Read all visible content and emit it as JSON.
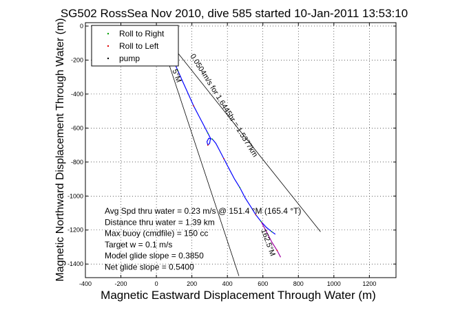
{
  "chart_data": {
    "type": "line",
    "title": "SG502 RossSea Nov 2010, dive 585 started 10-Jan-2011 13:53:10",
    "xlabel": "Magnetic Eastward Displacement Through Water (m)",
    "ylabel": "Magnetic Northward Displacement Through Water (m)",
    "xlim": [
      -400,
      1350
    ],
    "ylim": [
      -1480,
      20
    ],
    "xticks": [
      -400,
      -200,
      0,
      200,
      400,
      600,
      800,
      1000,
      1200
    ],
    "yticks": [
      0,
      -200,
      -400,
      -600,
      -800,
      -1000,
      -1200,
      -1400
    ],
    "grid": true,
    "legend_position": "top-left",
    "legend": [
      {
        "label": "Roll to Right",
        "color": "#00a000",
        "marker": "dot"
      },
      {
        "label": "Roll to Left",
        "color": "#e00000",
        "marker": "dot"
      },
      {
        "label": "pump",
        "color": "#000000",
        "marker": "dot"
      }
    ],
    "series": [
      {
        "color": "#0000ff",
        "points": [
          [
            0,
            0
          ],
          [
            15,
            -15
          ],
          [
            30,
            -40
          ],
          [
            50,
            -80
          ],
          [
            70,
            -130
          ],
          [
            95,
            -200
          ],
          [
            120,
            -260
          ],
          [
            150,
            -330
          ],
          [
            180,
            -400
          ],
          [
            210,
            -470
          ],
          [
            240,
            -530
          ],
          [
            270,
            -590
          ],
          [
            290,
            -630
          ],
          [
            305,
            -660
          ],
          [
            300,
            -690
          ],
          [
            290,
            -700
          ],
          [
            285,
            -680
          ],
          [
            295,
            -660
          ],
          [
            315,
            -665
          ],
          [
            335,
            -690
          ],
          [
            355,
            -730
          ],
          [
            380,
            -780
          ],
          [
            410,
            -840
          ],
          [
            440,
            -900
          ],
          [
            470,
            -950
          ],
          [
            500,
            -1010
          ],
          [
            530,
            -1060
          ],
          [
            560,
            -1110
          ],
          [
            590,
            -1150
          ],
          [
            620,
            -1185
          ],
          [
            650,
            -1210
          ],
          [
            670,
            -1225
          ]
        ]
      },
      {
        "color": "#a000a0",
        "points": [
          [
            590,
            -1150
          ],
          [
            620,
            -1210
          ],
          [
            650,
            -1270
          ],
          [
            680,
            -1320
          ],
          [
            700,
            -1360
          ]
        ]
      }
    ],
    "reference_lines": [
      {
        "name": "heading-line",
        "color": "#000000",
        "from": [
          0,
          0
        ],
        "to": [
          925,
          -1210
        ]
      },
      {
        "name": "drift-line",
        "color": "#000000",
        "from": [
          0,
          0
        ],
        "to": [
          465,
          -1470
        ]
      }
    ],
    "annotations": [
      {
        "id": "current",
        "text": "0.0504m/s for 1.6445hr = 1.5377km",
        "x": 190,
        "y": -175,
        "rotation": 58
      },
      {
        "id": "heading",
        "text": "162.5°M",
        "x": 590,
        "y": -1200,
        "rotation": 70
      },
      {
        "id": "short",
        "text": "5°M",
        "x": 90,
        "y": -260,
        "rotation": 70
      }
    ],
    "stats": [
      "Avg Spd thru water =  0.23 m/s @  151.4    °M (165.4 °T)",
      "Distance thru water =  1.39 km",
      "Max buoy (cmdfile) = 150 cc",
      "Target w = 0.1 m/s",
      "Model glide slope = 0.3850",
      "Net glide slope = 0.5400"
    ]
  }
}
